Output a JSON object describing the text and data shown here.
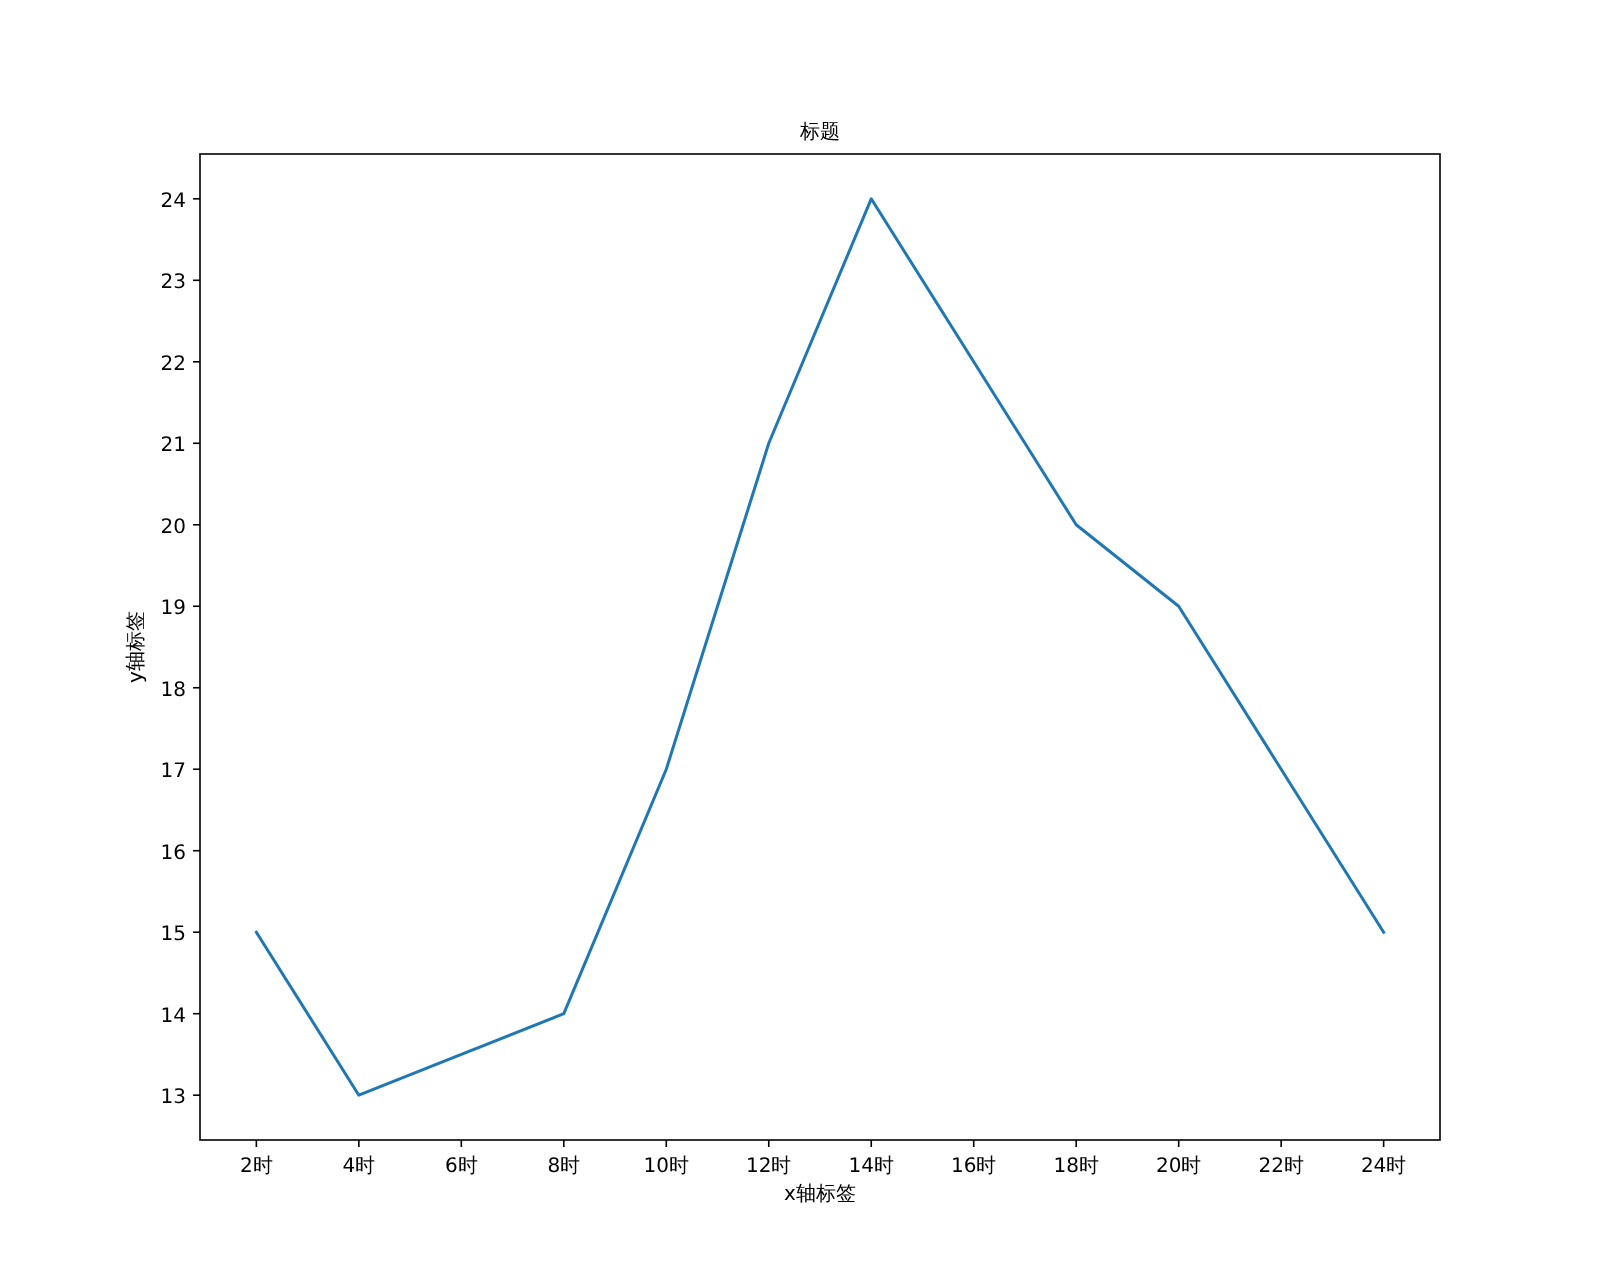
{
  "chart_data": {
    "type": "line",
    "title": "标题",
    "xlabel": "x轴标签",
    "ylabel": "y轴标签",
    "categories": [
      "2时",
      "4时",
      "6时",
      "8时",
      "10时",
      "12时",
      "14时",
      "16时",
      "18时",
      "20时",
      "22时",
      "24时"
    ],
    "values": [
      15,
      13,
      13.5,
      14,
      17,
      21,
      24,
      22,
      20,
      19,
      17,
      15
    ],
    "color": "#1f77b4",
    "ylim": [
      12.45,
      24.55
    ],
    "yticks": [
      13,
      14,
      15,
      16,
      17,
      18,
      19,
      20,
      21,
      22,
      23,
      24
    ]
  }
}
